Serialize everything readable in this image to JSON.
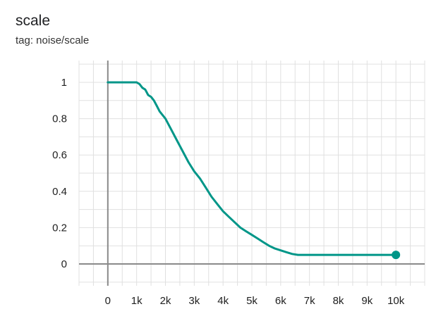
{
  "card": {
    "title": "scale",
    "tag": "tag: noise/scale"
  },
  "chart_data": {
    "type": "line",
    "title": "scale",
    "subtitle": "tag: noise/scale",
    "xlabel": "",
    "ylabel": "",
    "xlim": [
      -1000,
      11000
    ],
    "ylim": [
      -0.12,
      1.12
    ],
    "x_ticks": [
      0,
      1000,
      2000,
      3000,
      4000,
      5000,
      6000,
      7000,
      8000,
      9000,
      10000
    ],
    "x_tick_labels": [
      "0",
      "1k",
      "2k",
      "3k",
      "4k",
      "5k",
      "6k",
      "7k",
      "8k",
      "9k",
      "10k"
    ],
    "y_ticks": [
      0,
      0.2,
      0.4,
      0.6,
      0.8,
      1
    ],
    "y_tick_labels": [
      "0",
      "0.2",
      "0.4",
      "0.6",
      "0.8",
      "1"
    ],
    "grid": true,
    "legend": "none",
    "line_color": "#009688",
    "series": [
      {
        "x": [
          0,
          500,
          1000,
          1100,
          1200,
          1300,
          1400,
          1500,
          1600,
          1700,
          1800,
          1900,
          2000,
          2100,
          2200,
          2400,
          2600,
          2800,
          3000,
          3200,
          3400,
          3600,
          3800,
          4000,
          4200,
          4400,
          4600,
          4800,
          5000,
          5200,
          5400,
          5600,
          5800,
          6000,
          6200,
          6400,
          6600,
          7000,
          8000,
          9000,
          10000
        ],
        "y": [
          1,
          1,
          1,
          0.99,
          0.97,
          0.96,
          0.93,
          0.92,
          0.9,
          0.87,
          0.84,
          0.82,
          0.8,
          0.77,
          0.74,
          0.68,
          0.62,
          0.56,
          0.51,
          0.47,
          0.42,
          0.37,
          0.33,
          0.29,
          0.26,
          0.23,
          0.2,
          0.18,
          0.16,
          0.14,
          0.12,
          0.1,
          0.085,
          0.075,
          0.065,
          0.055,
          0.05,
          0.05,
          0.05,
          0.05,
          0.05
        ]
      }
    ],
    "end_marker": true
  }
}
